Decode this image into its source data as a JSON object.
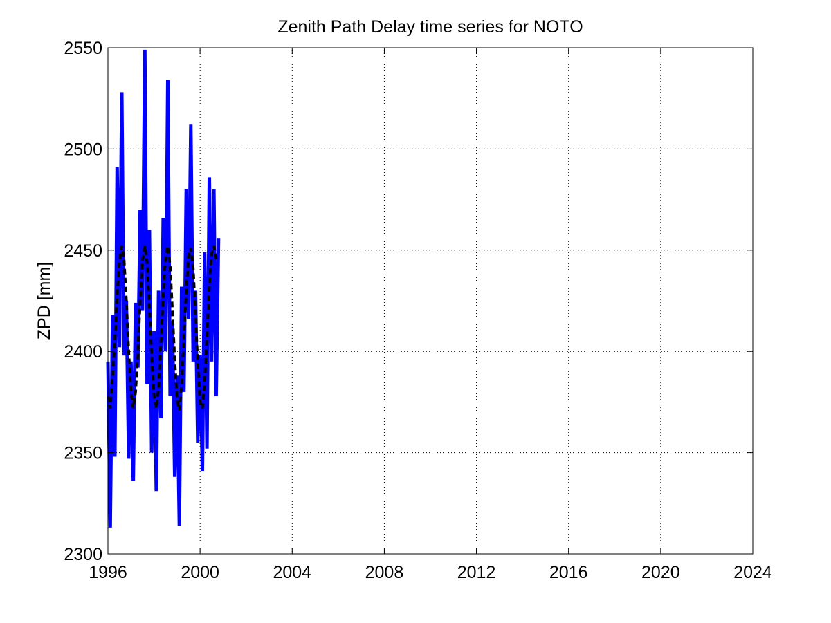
{
  "chart_data": {
    "type": "line",
    "title": "Zenith Path Delay time series for NOTO",
    "xlabel": "",
    "ylabel": "ZPD [mm]",
    "xlim": [
      1996,
      2024
    ],
    "ylim": [
      2300,
      2550
    ],
    "x_ticks": [
      1996,
      2000,
      2004,
      2008,
      2012,
      2016,
      2020,
      2024
    ],
    "y_ticks": [
      2300,
      2350,
      2400,
      2450,
      2500,
      2550
    ],
    "x_tick_labels": [
      "1996",
      "2000",
      "2004",
      "2008",
      "2012",
      "2016",
      "2020",
      "2024"
    ],
    "y_tick_labels": [
      "2300",
      "2350",
      "2400",
      "2450",
      "2500",
      "2550"
    ],
    "grid": true,
    "series": [
      {
        "style": "solid",
        "color": "#0000ff",
        "x": [
          1996.0,
          1996.1,
          1996.2,
          1996.3,
          1996.4,
          1996.5,
          1996.6,
          1996.7,
          1996.8,
          1996.9,
          1997.0,
          1997.1,
          1997.2,
          1997.3,
          1997.4,
          1997.5,
          1997.6,
          1997.7,
          1997.8,
          1997.9,
          1998.0,
          1998.1,
          1998.2,
          1998.3,
          1998.4,
          1998.5,
          1998.6,
          1998.7,
          1998.8,
          1998.9,
          1999.0,
          1999.1,
          1999.2,
          1999.3,
          1999.4,
          1999.5,
          1999.6,
          1999.7,
          1999.8,
          1999.9,
          2000.0,
          2000.1,
          2000.2,
          2000.3,
          2000.4,
          2000.5,
          2000.6,
          2000.7,
          2000.8
        ],
        "y": [
          2395,
          2313,
          2418,
          2348,
          2491,
          2402,
          2528,
          2398,
          2425,
          2347,
          2395,
          2336,
          2424,
          2392,
          2470,
          2420,
          2549,
          2384,
          2460,
          2350,
          2410,
          2331,
          2430,
          2367,
          2466,
          2400,
          2534,
          2378,
          2415,
          2338,
          2388,
          2314,
          2432,
          2380,
          2480,
          2416,
          2512,
          2395,
          2430,
          2355,
          2398,
          2341,
          2449,
          2352,
          2486,
          2395,
          2480,
          2378,
          2456
        ]
      },
      {
        "style": "dashed",
        "color": "#000000",
        "x": [
          1996.0,
          1996.1,
          1996.2,
          1996.3,
          1996.4,
          1996.5,
          1996.6,
          1996.7,
          1996.8,
          1996.9,
          1997.0,
          1997.1,
          1997.2,
          1997.3,
          1997.4,
          1997.5,
          1997.6,
          1997.7,
          1997.8,
          1997.9,
          1998.0,
          1998.1,
          1998.2,
          1998.3,
          1998.4,
          1998.5,
          1998.6,
          1998.7,
          1998.8,
          1998.9,
          1999.0,
          1999.1,
          1999.2,
          1999.3,
          1999.4,
          1999.5,
          1999.6,
          1999.7,
          1999.8,
          1999.9,
          2000.0,
          2000.1,
          2000.2,
          2000.3,
          2000.4,
          2000.5,
          2000.6,
          2000.7,
          2000.8
        ],
        "y": [
          2378,
          2372,
          2388,
          2405,
          2428,
          2444,
          2452,
          2445,
          2425,
          2400,
          2380,
          2372,
          2380,
          2400,
          2425,
          2445,
          2452,
          2444,
          2422,
          2398,
          2378,
          2372,
          2382,
          2405,
          2428,
          2447,
          2452,
          2442,
          2420,
          2396,
          2376,
          2371,
          2383,
          2407,
          2430,
          2447,
          2451,
          2441,
          2418,
          2394,
          2375,
          2372,
          2385,
          2408,
          2432,
          2448,
          2452,
          2446,
          2445
        ]
      }
    ]
  }
}
